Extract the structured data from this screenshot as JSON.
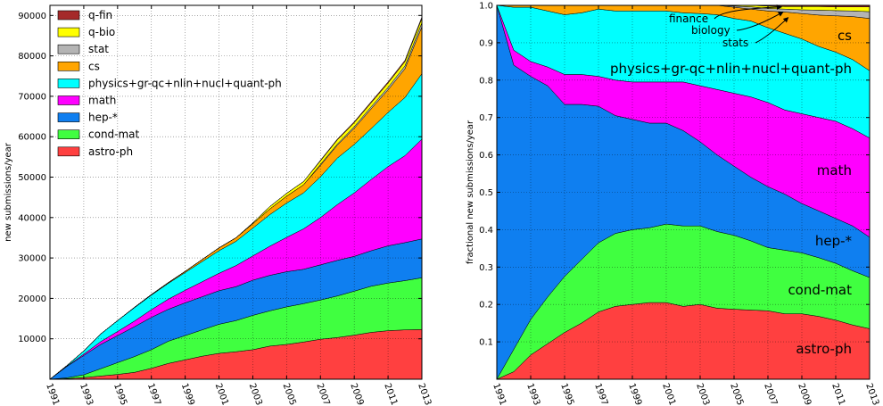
{
  "chart_data": [
    {
      "type": "area",
      "stacked": true,
      "ylabel": "new submissions/year",
      "ylim": [
        0,
        92500
      ],
      "yticks": [
        10000,
        20000,
        30000,
        40000,
        50000,
        60000,
        70000,
        80000,
        90000
      ],
      "xticks": [
        1991,
        1993,
        1995,
        1997,
        1999,
        2001,
        2003,
        2005,
        2007,
        2009,
        2011,
        2013
      ],
      "grid": true,
      "legend_position": "upper-left",
      "x": [
        1991,
        1992,
        1993,
        1994,
        1995,
        1996,
        1997,
        1998,
        1999,
        2000,
        2001,
        2002,
        2003,
        2004,
        2005,
        2006,
        2007,
        2008,
        2009,
        2010,
        2011,
        2012,
        2013
      ],
      "series": [
        {
          "name": "astro-ph",
          "color": "#ff4040",
          "values": [
            0,
            150,
            400,
            800,
            1200,
            1700,
            2700,
            3900,
            4800,
            5700,
            6400,
            6800,
            7300,
            8200,
            8600,
            9200,
            9900,
            10300,
            10900,
            11600,
            12000,
            12200,
            12300
          ]
        },
        {
          "name": "cond-mat",
          "color": "#40ff40",
          "values": [
            0,
            200,
            700,
            1800,
            2900,
            3900,
            4600,
            5500,
            6000,
            6500,
            7200,
            7700,
            8500,
            8700,
            9300,
            9500,
            9700,
            10300,
            10900,
            11400,
            11800,
            12200,
            12800
          ]
        },
        {
          "name": "hep-*",
          "color": "#0f7ff0",
          "values": [
            0,
            2800,
            4800,
            6000,
            6700,
            7400,
            8000,
            7900,
            8100,
            8200,
            8300,
            8400,
            8700,
            8800,
            8700,
            8500,
            8700,
            8800,
            8600,
            8800,
            9200,
            9400,
            9600
          ]
        },
        {
          "name": "math",
          "color": "#ff00ff",
          "values": [
            0,
            80,
            300,
            700,
            1000,
            1400,
            1900,
            2500,
            3100,
            3700,
            4300,
            5200,
            6000,
            7200,
            8500,
            10000,
            11700,
            13800,
            15700,
            17600,
            19600,
            21500,
            24700
          ]
        },
        {
          "name": "physics+gr-qc+nlin+nucl+quant-ph",
          "color": "#00ffff",
          "values": [
            0,
            150,
            800,
            1900,
            2700,
            3300,
            3600,
            3900,
            4400,
            5000,
            5600,
            6000,
            6900,
            7800,
            8500,
            8900,
            10100,
            11500,
            12000,
            12600,
            13400,
            14400,
            16200
          ]
        },
        {
          "name": "cs",
          "color": "#ffa500",
          "values": [
            0,
            0,
            0,
            0,
            0,
            100,
            150,
            200,
            300,
            500,
            700,
            900,
            1100,
            1400,
            1700,
            2000,
            2800,
            3200,
            4000,
            4900,
            5600,
            7100,
            11600
          ]
        },
        {
          "name": "stat",
          "color": "#b4b4b4",
          "values": [
            0,
            0,
            0,
            0,
            0,
            0,
            0,
            0,
            0,
            0,
            0,
            0,
            0,
            0,
            0,
            0,
            250,
            300,
            400,
            500,
            600,
            700,
            1000
          ]
        },
        {
          "name": "q-bio",
          "color": "#ffff00",
          "values": [
            0,
            0,
            0,
            0,
            0,
            0,
            0,
            0,
            0,
            0,
            0,
            0,
            180,
            600,
            700,
            800,
            900,
            1000,
            1000,
            1000,
            1100,
            1100,
            1100
          ]
        },
        {
          "name": "q-fin",
          "color": "#a52a2a",
          "values": [
            0,
            0,
            0,
            0,
            0,
            0,
            0,
            0,
            0,
            0,
            0,
            0,
            0,
            0,
            0,
            0,
            150,
            200,
            220,
            250,
            280,
            300,
            320
          ]
        }
      ]
    },
    {
      "type": "area",
      "stacked": true,
      "normalized": true,
      "ylabel": "fractional new submissions/year",
      "ylim": [
        0,
        1.0
      ],
      "yticks": [
        0.1,
        0.2,
        0.3,
        0.4,
        0.5,
        0.6,
        0.7,
        0.8,
        0.9,
        1.0
      ],
      "ytick_labels": [
        "0.1",
        "0.2",
        "0.3",
        "0.4",
        "0.5",
        "0.6",
        "0.7",
        "0.8",
        "0.9",
        "1.0"
      ],
      "xticks": [
        1991,
        1993,
        1995,
        1997,
        1999,
        2001,
        2003,
        2005,
        2007,
        2009,
        2011,
        2013
      ],
      "grid": true,
      "area_labels": [
        "astro-ph",
        "cond-mat",
        "hep-*",
        "math",
        "physics+gr-qc+nlin+nucl+quant-ph",
        "cs"
      ],
      "annotations": [
        {
          "text": "finance",
          "target_year": 2007.8,
          "target_value": 0.998
        },
        {
          "text": "biology",
          "target_year": 2007.9,
          "target_value": 0.985
        },
        {
          "text": "stats",
          "target_year": 2008.2,
          "target_value": 0.97
        }
      ],
      "x": [
        1991,
        1992,
        1993,
        1994,
        1995,
        1996,
        1997,
        1998,
        1999,
        2000,
        2001,
        2002,
        2003,
        2004,
        2005,
        2006,
        2007,
        2008,
        2009,
        2010,
        2011,
        2012,
        2013
      ],
      "cumulative": [
        {
          "name": "astro-ph",
          "color": "#ff4040",
          "values": [
            0,
            0.02,
            0.065,
            0.095,
            0.125,
            0.15,
            0.18,
            0.195,
            0.2,
            0.205,
            0.205,
            0.195,
            0.2,
            0.19,
            0.187,
            0.185,
            0.183,
            0.175,
            0.175,
            0.168,
            0.158,
            0.145,
            0.135
          ]
        },
        {
          "name": "cond-mat",
          "color": "#40ff40",
          "values": [
            0,
            0.08,
            0.16,
            0.22,
            0.275,
            0.32,
            0.365,
            0.39,
            0.4,
            0.405,
            0.415,
            0.41,
            0.41,
            0.395,
            0.385,
            0.37,
            0.352,
            0.345,
            0.338,
            0.325,
            0.31,
            0.29,
            0.272
          ]
        },
        {
          "name": "hep-*",
          "color": "#0f7ff0",
          "values": [
            1.0,
            0.84,
            0.81,
            0.785,
            0.735,
            0.735,
            0.73,
            0.705,
            0.695,
            0.685,
            0.685,
            0.665,
            0.635,
            0.6,
            0.57,
            0.54,
            0.515,
            0.495,
            0.47,
            0.45,
            0.43,
            0.41,
            0.38
          ]
        },
        {
          "name": "math",
          "color": "#ff00ff",
          "values": [
            1.0,
            0.88,
            0.85,
            0.835,
            0.815,
            0.815,
            0.81,
            0.8,
            0.795,
            0.795,
            0.795,
            0.795,
            0.785,
            0.775,
            0.765,
            0.755,
            0.74,
            0.72,
            0.71,
            0.7,
            0.69,
            0.67,
            0.645
          ]
        },
        {
          "name": "physics+gr-qc+nlin+nucl+quant-ph",
          "color": "#00ffff",
          "values": [
            1.0,
            0.995,
            0.995,
            0.985,
            0.975,
            0.98,
            0.99,
            0.985,
            0.985,
            0.985,
            0.985,
            0.98,
            0.978,
            0.975,
            0.965,
            0.958,
            0.94,
            0.925,
            0.91,
            0.89,
            0.875,
            0.855,
            0.825
          ]
        },
        {
          "name": "cs",
          "color": "#ffa500",
          "values": [
            1.0,
            1.0,
            1.0,
            1.0,
            1.0,
            1.0,
            1.0,
            1.0,
            1.0,
            1.0,
            1.0,
            1.0,
            1.0,
            1.0,
            0.995,
            0.99,
            0.985,
            0.982,
            0.978,
            0.974,
            0.972,
            0.97,
            0.965
          ]
        },
        {
          "name": "stat",
          "color": "#b4b4b4",
          "values": [
            1.0,
            1.0,
            1.0,
            1.0,
            1.0,
            1.0,
            1.0,
            1.0,
            1.0,
            1.0,
            1.0,
            1.0,
            1.0,
            1.0,
            0.998,
            0.996,
            0.992,
            0.99,
            0.988,
            0.987,
            0.986,
            0.985,
            0.983
          ]
        },
        {
          "name": "q-bio",
          "color": "#ffff00",
          "values": [
            1.0,
            1.0,
            1.0,
            1.0,
            1.0,
            1.0,
            1.0,
            1.0,
            1.0,
            1.0,
            1.0,
            1.0,
            1.0,
            1.0,
            1.0,
            1.0,
            0.998,
            0.997,
            0.997,
            0.997,
            0.996,
            0.996,
            0.996
          ]
        },
        {
          "name": "q-fin",
          "color": "#a52a2a",
          "values": [
            1.0,
            1.0,
            1.0,
            1.0,
            1.0,
            1.0,
            1.0,
            1.0,
            1.0,
            1.0,
            1.0,
            1.0,
            1.0,
            1.0,
            1.0,
            1.0,
            1.0,
            1.0,
            1.0,
            1.0,
            1.0,
            1.0,
            1.0
          ]
        }
      ]
    }
  ]
}
